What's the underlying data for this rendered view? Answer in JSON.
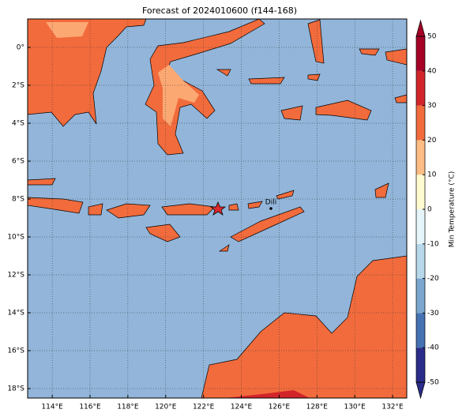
{
  "chart_data": {
    "type": "map",
    "title": "Forecast of 2024010600 (f144-168)",
    "xlim": [
      112.7,
      132.75
    ],
    "ylim": [
      -18.5,
      1.5
    ],
    "xticks": [
      {
        "value": 114,
        "label": "114°E"
      },
      {
        "value": 116,
        "label": "116°E"
      },
      {
        "value": 118,
        "label": "118°E"
      },
      {
        "value": 120,
        "label": "120°E"
      },
      {
        "value": 122,
        "label": "122°E"
      },
      {
        "value": 124,
        "label": "124°E"
      },
      {
        "value": 126,
        "label": "126°E"
      },
      {
        "value": 128,
        "label": "128°E"
      },
      {
        "value": 130,
        "label": "130°E"
      },
      {
        "value": 132,
        "label": "132°E"
      }
    ],
    "yticks": [
      {
        "value": 0,
        "label": "0°"
      },
      {
        "value": -2,
        "label": "2°S"
      },
      {
        "value": -4,
        "label": "4°S"
      },
      {
        "value": -6,
        "label": "6°S"
      },
      {
        "value": -8,
        "label": "8°S"
      },
      {
        "value": -10,
        "label": "10°S"
      },
      {
        "value": -12,
        "label": "12°S"
      },
      {
        "value": -14,
        "label": "14°S"
      },
      {
        "value": -16,
        "label": "16°S"
      },
      {
        "value": -18,
        "label": "18°S"
      }
    ],
    "grid": true,
    "annotations": [
      "Dili"
    ],
    "colorbar": {
      "label": "Min Temperature (°C)",
      "lim": [
        -50,
        50
      ],
      "ticks": [
        -50,
        -40,
        -30,
        -20,
        -10,
        0,
        10,
        20,
        30,
        40,
        50
      ],
      "colors": [
        "#2b2c8a",
        "#4472b2",
        "#7aa6d0",
        "#b6d8ea",
        "#e6f5fa",
        "#fffad0",
        "#fdbd84",
        "#f26b3c",
        "#d2252a",
        "#a50026"
      ]
    }
  }
}
